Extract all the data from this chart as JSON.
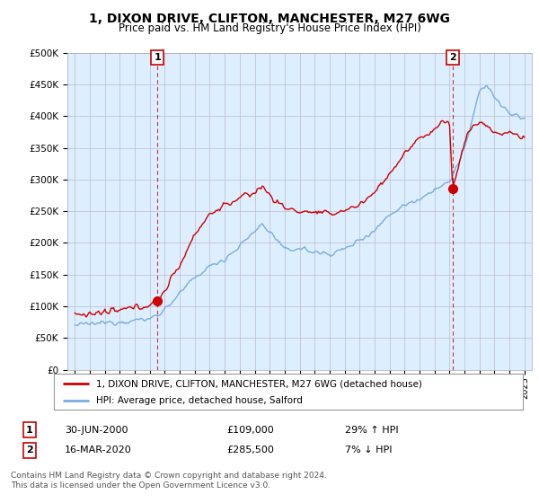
{
  "title": "1, DIXON DRIVE, CLIFTON, MANCHESTER, M27 6WG",
  "subtitle": "Price paid vs. HM Land Registry's House Price Index (HPI)",
  "ylabel_ticks": [
    "£0",
    "£50K",
    "£100K",
    "£150K",
    "£200K",
    "£250K",
    "£300K",
    "£350K",
    "£400K",
    "£450K",
    "£500K"
  ],
  "ylim": [
    0,
    500000
  ],
  "xlim_start": 1994.5,
  "xlim_end": 2025.5,
  "legend_label_red": "1, DIXON DRIVE, CLIFTON, MANCHESTER, M27 6WG (detached house)",
  "legend_label_blue": "HPI: Average price, detached house, Salford",
  "annotation1_date": "30-JUN-2000",
  "annotation1_price": "£109,000",
  "annotation1_hpi": "29% ↑ HPI",
  "annotation2_date": "16-MAR-2020",
  "annotation2_price": "£285,500",
  "annotation2_hpi": "7% ↓ HPI",
  "footer": "Contains HM Land Registry data © Crown copyright and database right 2024.\nThis data is licensed under the Open Government Licence v3.0.",
  "point1_x": 2000.5,
  "point1_y": 109000,
  "point2_x": 2020.21,
  "point2_y": 285500,
  "red_color": "#cc0000",
  "blue_color": "#7aaddc",
  "bg_fill_color": "#ddeeff",
  "background_color": "#ffffff",
  "grid_color": "#bbbbcc",
  "annotation_box_color": "#cc0000"
}
